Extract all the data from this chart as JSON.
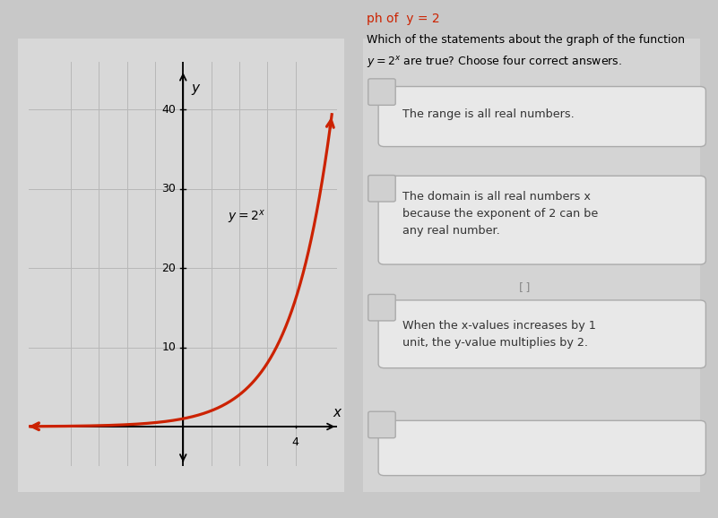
{
  "bg_color": "#c8c8c8",
  "left_bg": "#d8d8d8",
  "right_bg": "#d4d4d4",
  "curve_color": "#cc2200",
  "axis_color": "#000000",
  "grid_color": "#b8b8b8",
  "yticks": [
    10,
    20,
    30,
    40
  ],
  "xtick_val": 4,
  "xlabel": "x",
  "ylabel": "y",
  "func_label": "y = 2x",
  "header_red": "ph of  y = 2",
  "title_line1": "Which of the statements about the graph of the function",
  "title_line2": "y = 2x are true? Choose four correct answers.",
  "box1_text": "The range is all real numbers.",
  "box2_line1": "The domain is all real numbers x",
  "box2_line2": "because the exponent of 2 can be",
  "box2_line3": "any real number.",
  "box3_line1": "When the x-values increases by 1",
  "box3_line2": "unit, the y-value multiplies by 2.",
  "box_bg": "#e8e8e8",
  "box_border": "#aaaaaa",
  "checkbox_bg": "#d0d0d0",
  "text_color": "#333333",
  "header_color": "#cc2200"
}
